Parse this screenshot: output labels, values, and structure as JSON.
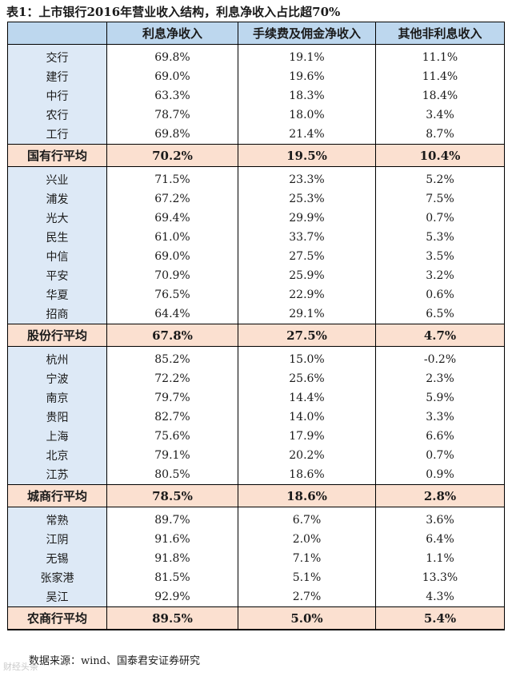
{
  "title": "表1：上市银行2016年营业收入结构，利息净收入占比超70%",
  "headers": [
    "",
    "利息净收入",
    "手续费及佣金净收入",
    "其他非利息收入"
  ],
  "groups": [
    {
      "rows": [
        {
          "name": "交行",
          "values": [
            "69.8%",
            "19.1%",
            "11.1%"
          ]
        },
        {
          "name": "建行",
          "values": [
            "69.0%",
            "19.6%",
            "11.4%"
          ]
        },
        {
          "name": "中行",
          "values": [
            "63.3%",
            "18.3%",
            "18.4%"
          ]
        },
        {
          "name": "农行",
          "values": [
            "78.7%",
            "18.0%",
            "3.4%"
          ]
        },
        {
          "name": "工行",
          "values": [
            "69.8%",
            "21.4%",
            "8.7%"
          ]
        }
      ],
      "average": {
        "name": "国有行平均",
        "values": [
          "70.2%",
          "19.5%",
          "10.4%"
        ]
      }
    },
    {
      "rows": [
        {
          "name": "兴业",
          "values": [
            "71.5%",
            "23.3%",
            "5.2%"
          ]
        },
        {
          "name": "浦发",
          "values": [
            "67.2%",
            "25.3%",
            "7.5%"
          ]
        },
        {
          "name": "光大",
          "values": [
            "69.4%",
            "29.9%",
            "0.7%"
          ]
        },
        {
          "name": "民生",
          "values": [
            "61.0%",
            "33.7%",
            "5.3%"
          ]
        },
        {
          "name": "中信",
          "values": [
            "69.0%",
            "27.5%",
            "3.5%"
          ]
        },
        {
          "name": "平安",
          "values": [
            "70.9%",
            "25.9%",
            "3.2%"
          ]
        },
        {
          "name": "华夏",
          "values": [
            "76.5%",
            "22.9%",
            "0.6%"
          ]
        },
        {
          "name": "招商",
          "values": [
            "64.4%",
            "29.1%",
            "6.5%"
          ]
        }
      ],
      "average": {
        "name": "股份行平均",
        "values": [
          "67.8%",
          "27.5%",
          "4.7%"
        ]
      }
    },
    {
      "rows": [
        {
          "name": "杭州",
          "values": [
            "85.2%",
            "15.0%",
            "-0.2%"
          ]
        },
        {
          "name": "宁波",
          "values": [
            "72.2%",
            "25.6%",
            "2.3%"
          ]
        },
        {
          "name": "南京",
          "values": [
            "79.7%",
            "14.4%",
            "5.9%"
          ]
        },
        {
          "name": "贵阳",
          "values": [
            "82.7%",
            "14.0%",
            "3.3%"
          ]
        },
        {
          "name": "上海",
          "values": [
            "75.6%",
            "17.9%",
            "6.6%"
          ]
        },
        {
          "name": "北京",
          "values": [
            "79.1%",
            "20.2%",
            "0.7%"
          ]
        },
        {
          "name": "江苏",
          "values": [
            "80.5%",
            "18.6%",
            "0.9%"
          ]
        }
      ],
      "average": {
        "name": "城商行平均",
        "values": [
          "78.5%",
          "18.6%",
          "2.8%"
        ]
      }
    },
    {
      "rows": [
        {
          "name": "常熟",
          "values": [
            "89.7%",
            "6.7%",
            "3.6%"
          ]
        },
        {
          "name": "江阴",
          "values": [
            "91.6%",
            "2.0%",
            "6.4%"
          ]
        },
        {
          "name": "无锡",
          "values": [
            "91.8%",
            "7.1%",
            "1.1%"
          ]
        },
        {
          "name": "张家港",
          "values": [
            "81.5%",
            "5.1%",
            "13.3%"
          ]
        },
        {
          "name": "吴江",
          "values": [
            "92.9%",
            "2.7%",
            "4.3%"
          ]
        }
      ],
      "average": {
        "name": "农商行平均",
        "values": [
          "89.5%",
          "5.0%",
          "5.4%"
        ]
      }
    }
  ],
  "source": "数据来源：wind、国泰君安证券研究",
  "watermark": "财经头条"
}
